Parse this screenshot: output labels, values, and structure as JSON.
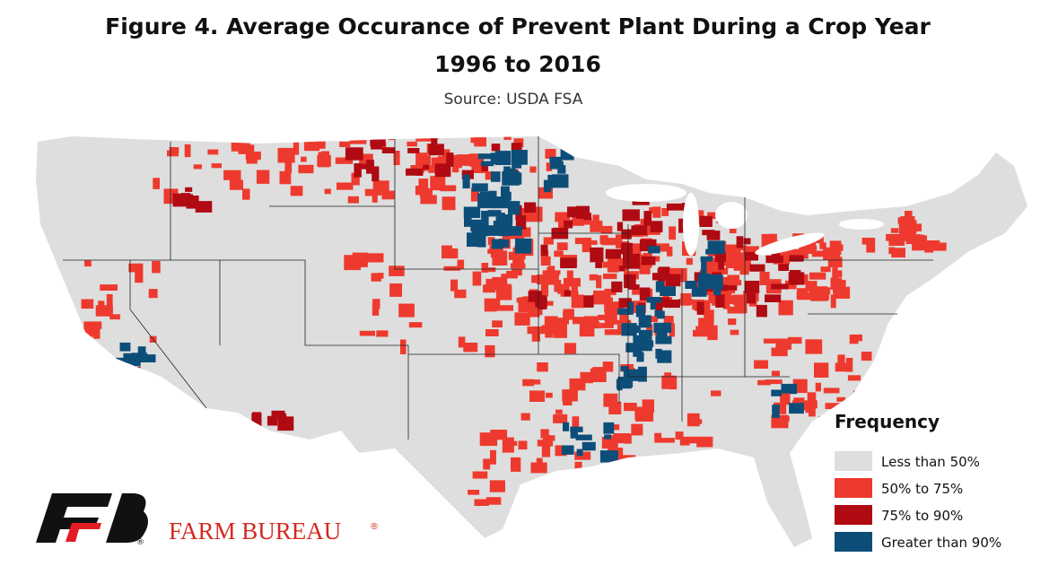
{
  "header": {
    "title": "Figure 4. Average Occurance of Prevent Plant During a Crop Year",
    "subtitle": "1996 to 2016",
    "source": "Source: USDA FSA"
  },
  "legend": {
    "title": "Frequency",
    "items": [
      {
        "label": "Less than 50%",
        "color": "#dedede"
      },
      {
        "label": "50% to 75%",
        "color": "#ee3a2e"
      },
      {
        "label": "75% to 90%",
        "color": "#b00a12"
      },
      {
        "label": "Greater than 90%",
        "color": "#0d4e79"
      }
    ]
  },
  "logo": {
    "text": "FARM BUREAU",
    "registered": "®"
  }
}
